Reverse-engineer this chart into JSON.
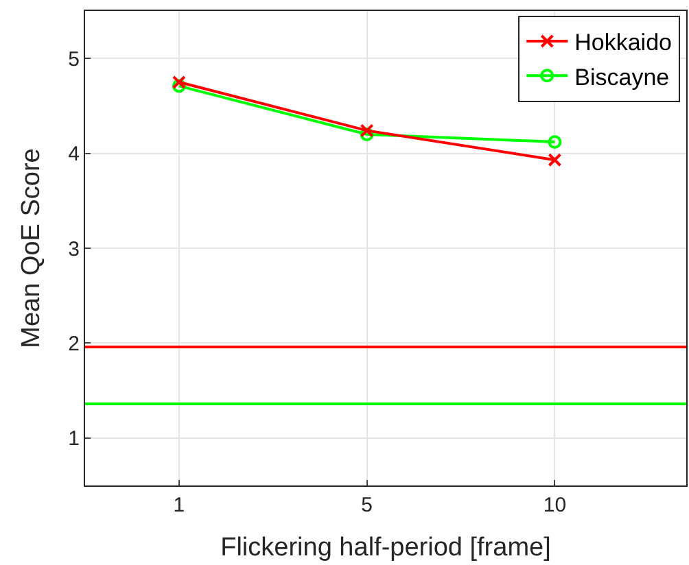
{
  "chart_data": {
    "type": "line",
    "xlabel": "Flickering half-period [frame]",
    "ylabel": "Mean QoE Score",
    "categories": [
      "1",
      "5",
      "10"
    ],
    "series": [
      {
        "name": "Hokkaido",
        "color": "#ff0000",
        "marker": "cross",
        "values": [
          4.75,
          4.24,
          3.93
        ]
      },
      {
        "name": "Biscayne",
        "color": "#00ff00",
        "marker": "circle",
        "values": [
          4.71,
          4.2,
          4.12
        ]
      }
    ],
    "ref_lines": [
      {
        "axis": "y",
        "value": 1.96,
        "color": "#ff0000"
      },
      {
        "axis": "y",
        "value": 1.36,
        "color": "#00ff00"
      }
    ],
    "ylim": [
      0.5,
      5.5
    ],
    "yticks": [
      1,
      2,
      3,
      4,
      5
    ],
    "grid": true,
    "legend": "top right",
    "line_style": "solid"
  }
}
